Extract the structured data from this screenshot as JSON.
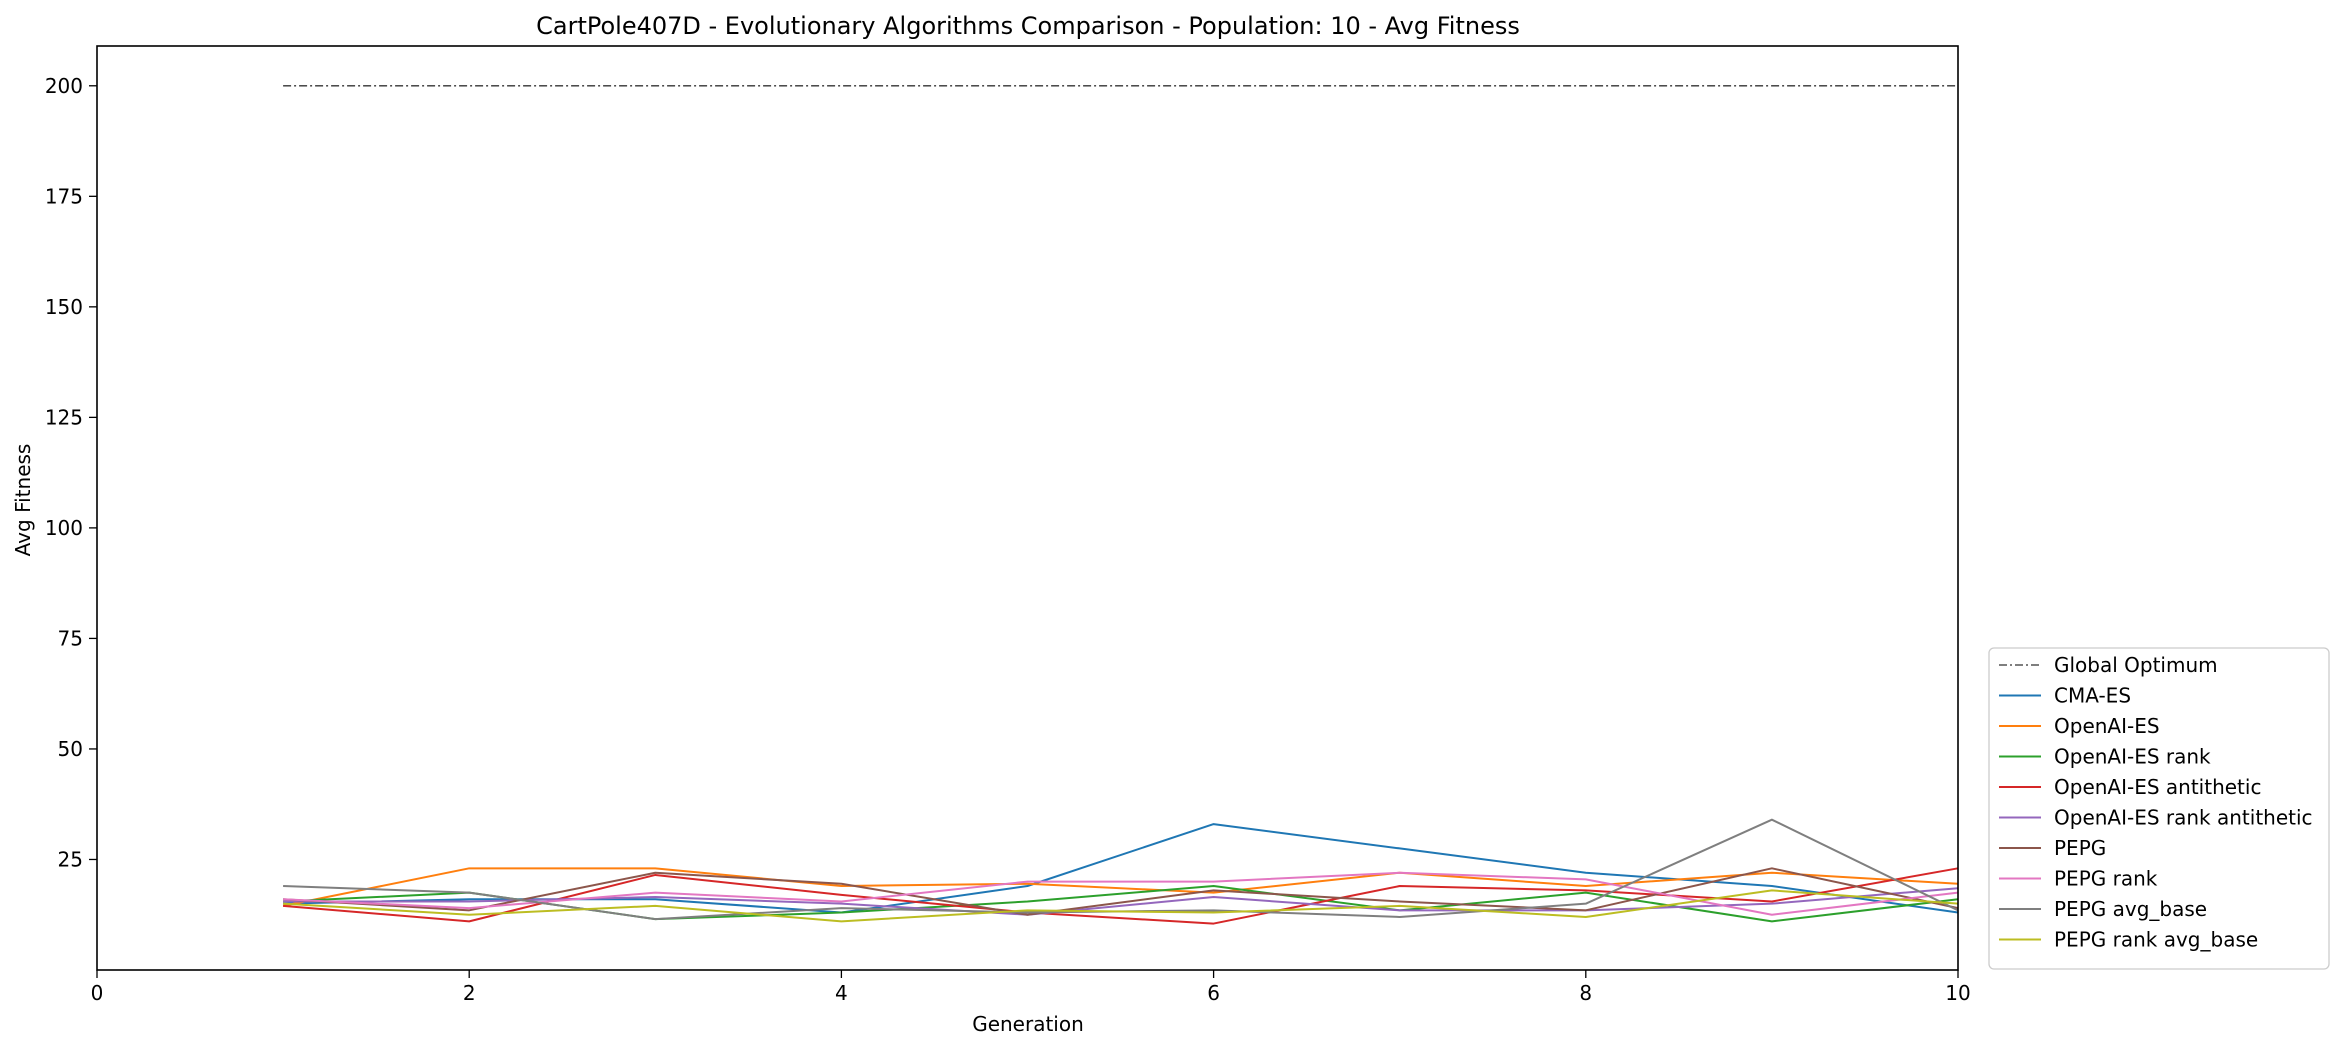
{
  "chart_data": {
    "type": "line",
    "title": "CartPole407D - Evolutionary Algorithms Comparison - Population: 10 - Avg Fitness",
    "xlabel": "Generation",
    "ylabel": "Avg Fitness",
    "xlim": [
      0,
      10
    ],
    "ylim": [
      0,
      209
    ],
    "x_ticks": [
      0,
      2,
      4,
      6,
      8,
      10
    ],
    "y_ticks": [
      25,
      50,
      75,
      100,
      125,
      150,
      175,
      200
    ],
    "grid": false,
    "legend_position": "outside-right-bottom",
    "x": [
      1,
      2,
      3,
      4,
      5,
      6,
      7,
      8,
      9,
      10
    ],
    "reference_line": {
      "name": "Global Optimum",
      "value": 200,
      "x_range": [
        1,
        10
      ],
      "color": "#333333",
      "style": "dashdot"
    },
    "series": [
      {
        "name": "CMA-ES",
        "color": "#1f77b4",
        "values": [
          15.0,
          16.0,
          16.0,
          13.0,
          19.0,
          33.0,
          27.5,
          22.0,
          19.0,
          13.0
        ]
      },
      {
        "name": "OpenAI-ES",
        "color": "#ff7f0e",
        "values": [
          14.5,
          23.0,
          23.0,
          19.0,
          19.5,
          17.5,
          22.0,
          19.0,
          22.0,
          19.5
        ]
      },
      {
        "name": "OpenAI-ES rank",
        "color": "#2ca02c",
        "values": [
          15.5,
          17.5,
          11.5,
          13.0,
          15.5,
          19.0,
          13.5,
          17.5,
          11.0,
          16.0
        ]
      },
      {
        "name": "OpenAI-ES antithetic",
        "color": "#d62728",
        "values": [
          14.5,
          11.0,
          21.5,
          17.0,
          13.0,
          10.5,
          19.0,
          18.0,
          15.5,
          23.0
        ]
      },
      {
        "name": "OpenAI-ES rank antithetic",
        "color": "#9467bd",
        "values": [
          15.5,
          15.5,
          16.5,
          15.0,
          12.5,
          16.5,
          13.5,
          13.5,
          15.0,
          18.5
        ]
      },
      {
        "name": "PEPG",
        "color": "#8c564b",
        "values": [
          16.0,
          13.5,
          22.0,
          19.5,
          12.5,
          18.0,
          15.5,
          13.5,
          23.0,
          14.0
        ]
      },
      {
        "name": "PEPG rank",
        "color": "#e377c2",
        "values": [
          16.0,
          14.0,
          17.5,
          15.5,
          20.0,
          20.0,
          22.0,
          20.5,
          12.5,
          17.5
        ]
      },
      {
        "name": "PEPG avg_base",
        "color": "#7f7f7f",
        "values": [
          19.0,
          17.5,
          11.5,
          14.0,
          13.0,
          13.5,
          12.0,
          15.0,
          34.0,
          13.5
        ]
      },
      {
        "name": "PEPG rank avg_base",
        "color": "#bcbd22",
        "values": [
          15.0,
          12.5,
          14.5,
          11.0,
          13.5,
          13.0,
          14.5,
          12.0,
          18.0,
          15.0
        ]
      }
    ]
  }
}
